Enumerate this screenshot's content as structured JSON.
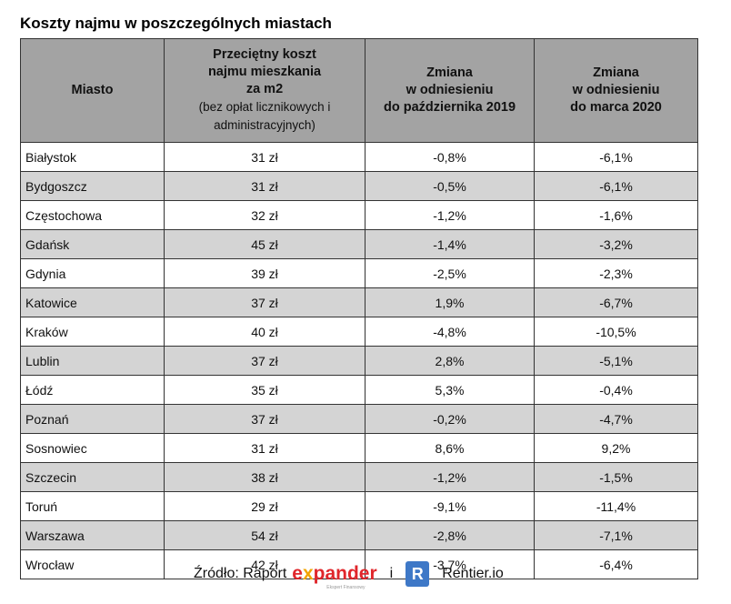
{
  "title": "Koszty najmu w poszczególnych miastach",
  "headers": {
    "city": "Miasto",
    "cost_lines": [
      "Przeciętny koszt",
      "najmu mieszkania",
      "za m2"
    ],
    "cost_note": "(bez opłat licznikowych i administracyjnych)",
    "oct": [
      "Zmiana",
      "w odniesieniu",
      "do października 2019"
    ],
    "mar": [
      "Zmiana",
      "w odniesieniu",
      "do marca 2020"
    ]
  },
  "rows": [
    [
      "Białystok",
      "31 zł",
      "-0,8%",
      "-6,1%"
    ],
    [
      "Bydgoszcz",
      "31 zł",
      "-0,5%",
      "-6,1%"
    ],
    [
      "Częstochowa",
      "32 zł",
      "-1,2%",
      "-1,6%"
    ],
    [
      "Gdańsk",
      "45 zł",
      "-1,4%",
      "-3,2%"
    ],
    [
      "Gdynia",
      "39 zł",
      "-2,5%",
      "-2,3%"
    ],
    [
      "Katowice",
      "37 zł",
      "1,9%",
      "-6,7%"
    ],
    [
      "Kraków",
      "40 zł",
      "-4,8%",
      "-10,5%"
    ],
    [
      "Lublin",
      "37 zł",
      "2,8%",
      "-5,1%"
    ],
    [
      "Łódź",
      "35 zł",
      "5,3%",
      "-0,4%"
    ],
    [
      "Poznań",
      "37 zł",
      "-0,2%",
      "-4,7%"
    ],
    [
      "Sosnowiec",
      "31 zł",
      "8,6%",
      "9,2%"
    ],
    [
      "Szczecin",
      "38 zł",
      "-1,2%",
      "-1,5%"
    ],
    [
      "Toruń",
      "29 zł",
      "-9,1%",
      "-11,4%"
    ],
    [
      "Warszawa",
      "54 zł",
      "-2,8%",
      "-7,1%"
    ],
    [
      "Wrocław",
      "42 zł",
      "-3,7%",
      "-6,4%"
    ]
  ],
  "source": {
    "label": "Źródło: Raport",
    "expander_a": "e",
    "expander_x": "x",
    "expander_b": "pander",
    "expander_sub": "Ekspert Finansowy",
    "and": "i",
    "r_logo": "R",
    "rentier": "Rentier.io"
  }
}
